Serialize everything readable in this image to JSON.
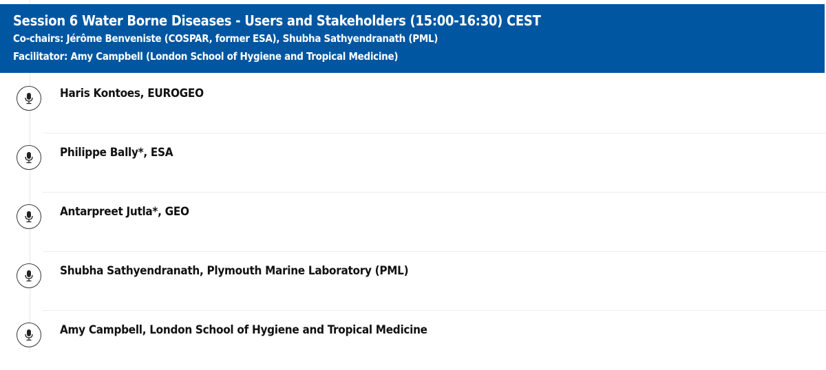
{
  "session": {
    "title": "Session 6 Water Borne Diseases - Users and Stakeholders (15:00-16:30) CEST",
    "cochairs": "Co-chairs: Jérôme Benveniste (COSPAR, former ESA), Shubha Sathyendranath (PML)",
    "facilitator": "Facilitator: Amy Campbell (London School of Hygiene and Tropical Medicine)",
    "header_color": "#0056a1"
  },
  "speakers": [
    {
      "name": "Haris Kontoes, EUROGEO",
      "icon": "microphone-icon"
    },
    {
      "name": "Philippe Bally*, ESA",
      "icon": "microphone-icon"
    },
    {
      "name": "Antarpreet Jutla*, GEO",
      "icon": "microphone-icon"
    },
    {
      "name": "Shubha Sathyendranath, Plymouth Marine Laboratory (PML)",
      "icon": "microphone-icon"
    },
    {
      "name": "Amy Campbell, London School of Hygiene and Tropical Medicine",
      "icon": "microphone-icon"
    }
  ]
}
